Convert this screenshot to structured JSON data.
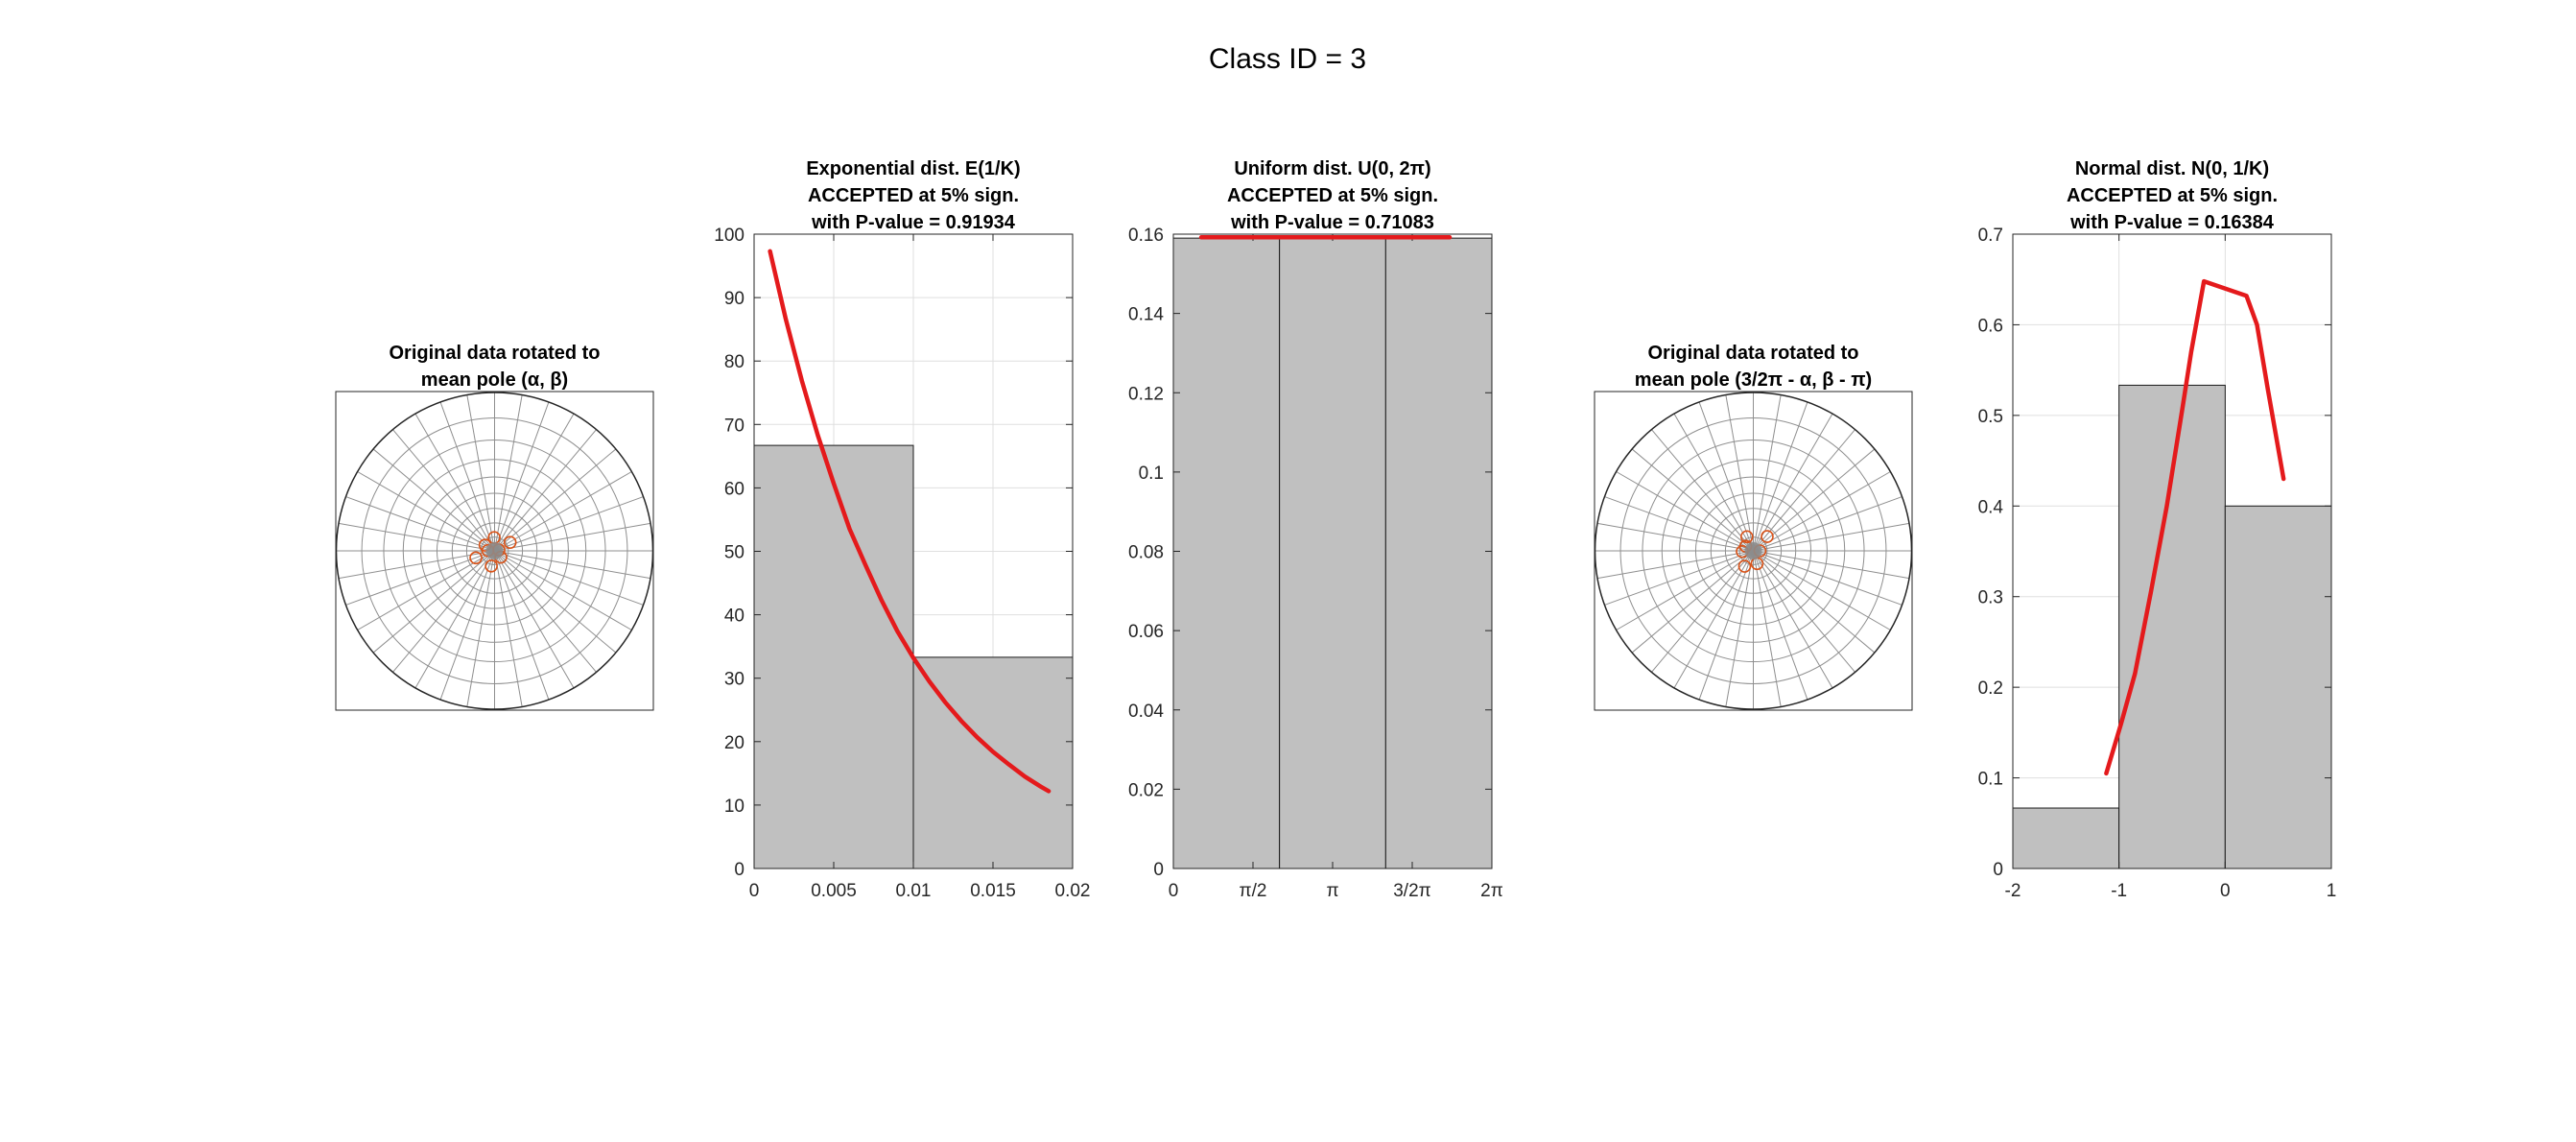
{
  "figure": {
    "suptitle": "Class ID = 3"
  },
  "colors": {
    "bar_fill": "#c0c0c0",
    "fit_line": "#e41a1c",
    "points": "#d95319",
    "points_center": "#8c8c8c"
  },
  "polar_plots": [
    {
      "title_lines": [
        "Original data rotated to",
        "mean pole (α, β)"
      ],
      "points": [
        [
          0.08,
          0.5
        ],
        [
          0.06,
          1.6
        ],
        [
          0.05,
          2.6
        ],
        [
          0.09,
          3.5
        ],
        [
          0.07,
          4.5
        ],
        [
          0.04,
          5.5
        ],
        [
          0.02,
          0.2
        ],
        [
          0.03,
          3.1
        ]
      ]
    },
    {
      "title_lines": [
        "Original data rotated to",
        "mean pole (3/2π - α, β - π)"
      ],
      "points": [
        [
          0.09,
          0.8
        ],
        [
          0.07,
          2.0
        ],
        [
          0.05,
          3.2
        ],
        [
          0.08,
          4.2
        ],
        [
          0.06,
          5.0
        ],
        [
          0.03,
          0.0
        ],
        [
          0.04,
          2.6
        ]
      ]
    }
  ],
  "chart_data": [
    {
      "type": "bar",
      "title_lines": [
        "Exponential dist. E(1/K)",
        "ACCEPTED at 5% sign.",
        "with P-value = 0.91934"
      ],
      "xlim": [
        0,
        0.02
      ],
      "ylim": [
        0,
        100
      ],
      "xticks": [
        {
          "v": 0,
          "label": "0"
        },
        {
          "v": 0.005,
          "label": "0.005"
        },
        {
          "v": 0.01,
          "label": "0.01"
        },
        {
          "v": 0.015,
          "label": "0.015"
        },
        {
          "v": 0.02,
          "label": "0.02"
        }
      ],
      "yticks": [
        {
          "v": 0,
          "label": "0"
        },
        {
          "v": 10,
          "label": "10"
        },
        {
          "v": 20,
          "label": "20"
        },
        {
          "v": 30,
          "label": "30"
        },
        {
          "v": 40,
          "label": "40"
        },
        {
          "v": 50,
          "label": "50"
        },
        {
          "v": 60,
          "label": "60"
        },
        {
          "v": 70,
          "label": "70"
        },
        {
          "v": 80,
          "label": "80"
        },
        {
          "v": 90,
          "label": "90"
        },
        {
          "v": 100,
          "label": "100"
        }
      ],
      "bins": [
        [
          0,
          0.01,
          66.7
        ],
        [
          0.01,
          0.02,
          33.3
        ]
      ],
      "fit_line": {
        "x": [
          0.001,
          0.002,
          0.003,
          0.004,
          0.005,
          0.006,
          0.007,
          0.008,
          0.009,
          0.01,
          0.011,
          0.012,
          0.013,
          0.014,
          0.015,
          0.016,
          0.017,
          0.018,
          0.0185
        ],
        "y": [
          97.3,
          86.5,
          76.9,
          68.3,
          60.7,
          53.5,
          47.8,
          42.3,
          37.4,
          33.2,
          29.5,
          26.2,
          23.3,
          20.7,
          18.4,
          16.4,
          14.5,
          12.9,
          12.2
        ]
      },
      "grid": true
    },
    {
      "type": "bar",
      "title_lines": [
        "Uniform dist. U(0, 2π)",
        "ACCEPTED at 5% sign.",
        "with P-value = 0.71083"
      ],
      "xlim": [
        0,
        6.2832
      ],
      "ylim": [
        0,
        0.16
      ],
      "xticks": [
        {
          "v": 0,
          "label": "0"
        },
        {
          "v": 1.5708,
          "label": "π/2"
        },
        {
          "v": 3.1416,
          "label": "π"
        },
        {
          "v": 4.7124,
          "label": "3/2π"
        },
        {
          "v": 6.2832,
          "label": "2π"
        }
      ],
      "yticks": [
        {
          "v": 0,
          "label": "0"
        },
        {
          "v": 0.02,
          "label": "0.02"
        },
        {
          "v": 0.04,
          "label": "0.04"
        },
        {
          "v": 0.06,
          "label": "0.06"
        },
        {
          "v": 0.08,
          "label": "0.08"
        },
        {
          "v": 0.1,
          "label": "0.1"
        },
        {
          "v": 0.12,
          "label": "0.12"
        },
        {
          "v": 0.14,
          "label": "0.14"
        },
        {
          "v": 0.16,
          "label": "0.16"
        }
      ],
      "bins": [
        [
          0,
          2.094,
          0.159
        ],
        [
          2.094,
          4.189,
          0.159
        ],
        [
          4.189,
          6.283,
          0.159
        ]
      ],
      "fit_line": {
        "x": [
          0.55,
          5.45
        ],
        "y": [
          0.1592,
          0.1592
        ]
      },
      "grid": true
    },
    {
      "type": "bar",
      "title_lines": [
        "Normal dist. N(0, 1/K)",
        "ACCEPTED at 5% sign.",
        "with P-value = 0.16384"
      ],
      "xlim": [
        -2,
        1
      ],
      "ylim": [
        0,
        0.7
      ],
      "xticks": [
        {
          "v": -2,
          "label": "-2"
        },
        {
          "v": -1,
          "label": "-1"
        },
        {
          "v": 0,
          "label": "0"
        },
        {
          "v": 1,
          "label": "1"
        }
      ],
      "yticks": [
        {
          "v": 0,
          "label": "0"
        },
        {
          "v": 0.1,
          "label": "0.1"
        },
        {
          "v": 0.2,
          "label": "0.2"
        },
        {
          "v": 0.3,
          "label": "0.3"
        },
        {
          "v": 0.4,
          "label": "0.4"
        },
        {
          "v": 0.5,
          "label": "0.5"
        },
        {
          "v": 0.6,
          "label": "0.6"
        },
        {
          "v": 0.7,
          "label": "0.7"
        }
      ],
      "bins": [
        [
          -2,
          -1,
          0.0667
        ],
        [
          -1,
          0,
          0.5333
        ],
        [
          0,
          1,
          0.4
        ]
      ],
      "fit_line": {
        "x": [
          -1.12,
          -0.98,
          -0.85,
          -0.7,
          -0.55,
          -0.4,
          -0.32,
          -0.2,
          0.2,
          0.3,
          0.4,
          0.55
        ],
        "y": [
          0.105,
          0.16,
          0.215,
          0.305,
          0.4,
          0.51,
          0.57,
          0.648,
          0.632,
          0.6,
          0.53,
          0.43
        ]
      },
      "grid": true
    }
  ]
}
